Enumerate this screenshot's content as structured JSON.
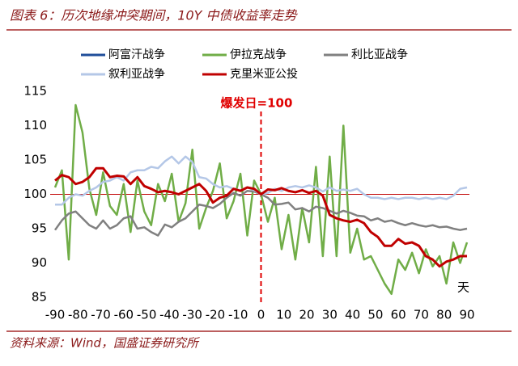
{
  "chart_data": {
    "type": "line",
    "title": "图表 6：历次地缘冲突期间，10Y 中债收益率走势",
    "source": "资料来源：Wind，国盛证券研究所",
    "annotations": [
      "爆发日=100",
      "天"
    ],
    "hline": 100,
    "vline": 0,
    "x": [
      -90,
      -87,
      -84,
      -81,
      -78,
      -75,
      -72,
      -69,
      -66,
      -63,
      -60,
      -57,
      -54,
      -51,
      -48,
      -45,
      -42,
      -39,
      -36,
      -33,
      -30,
      -27,
      -24,
      -21,
      -18,
      -15,
      -12,
      -9,
      -6,
      -3,
      0,
      3,
      6,
      9,
      12,
      15,
      18,
      21,
      24,
      27,
      30,
      33,
      36,
      39,
      42,
      45,
      48,
      51,
      54,
      57,
      60,
      63,
      66,
      69,
      72,
      75,
      78,
      81,
      84,
      87,
      90
    ],
    "xlim": [
      -90,
      90
    ],
    "xticks": [
      -90,
      -80,
      -70,
      -60,
      -50,
      -40,
      -30,
      -20,
      -10,
      0,
      10,
      20,
      30,
      40,
      50,
      60,
      70,
      80,
      90
    ],
    "ylim": [
      85,
      115
    ],
    "yticks": [
      85,
      90,
      95,
      100,
      105,
      110,
      115
    ],
    "series": [
      {
        "name": "阿富汗战争",
        "color": "#1f4e9a",
        "values": [
          null,
          null,
          null,
          null,
          null,
          null,
          null,
          null,
          null,
          null,
          null,
          null,
          null,
          null,
          null,
          null,
          null,
          null,
          null,
          null,
          null,
          null,
          null,
          null,
          null,
          null,
          null,
          null,
          null,
          null,
          null,
          null,
          null,
          null,
          null,
          null,
          null,
          null,
          null,
          null,
          null,
          null,
          null,
          null,
          null,
          null,
          null,
          null,
          null,
          null,
          null,
          null,
          null,
          null,
          null,
          null,
          null,
          null,
          null,
          null,
          null
        ]
      },
      {
        "name": "伊拉克战争",
        "color": "#70ad47",
        "values": [
          101,
          103.5,
          90.5,
          113,
          109,
          100.8,
          97,
          103.2,
          98.3,
          97,
          101.5,
          94.5,
          102,
          97.5,
          95.5,
          101.5,
          99,
          103,
          96,
          98.7,
          106.5,
          95,
          98,
          100.5,
          104.5,
          96.5,
          99,
          103,
          94,
          102,
          100,
          96,
          99.5,
          92,
          97,
          90.5,
          98,
          93,
          104,
          91,
          105.5,
          91,
          110,
          91.5,
          95,
          90.5,
          91,
          89,
          87,
          85.5,
          90.5,
          89,
          91.5,
          88.5,
          92,
          89.5,
          91,
          87,
          93,
          90,
          93
        ]
      },
      {
        "name": "利比亚战争",
        "color": "#808080",
        "values": [
          94.8,
          96.2,
          97.2,
          97.5,
          96.5,
          95.5,
          95,
          96.2,
          95,
          95.5,
          96.5,
          96.8,
          95,
          95.2,
          94.5,
          94,
          95.6,
          95.2,
          96,
          96.5,
          97.5,
          98.5,
          98.3,
          98,
          98.6,
          99.5,
          100.2,
          99.8,
          100.5,
          100.4,
          100,
          99.5,
          98.5,
          98.6,
          98.8,
          97.8,
          98,
          97.5,
          98.2,
          98,
          97.6,
          97.2,
          97.6,
          97.3,
          96.9,
          96.8,
          96.2,
          96.5,
          96,
          96.2,
          95.8,
          95.5,
          95.8,
          95.5,
          95.3,
          95.5,
          95.2,
          95.3,
          95,
          94.8,
          95
        ]
      },
      {
        "name": "叙利亚战争",
        "color": "#b4c7e7",
        "values": [
          98.5,
          98.5,
          99.5,
          100,
          99.8,
          100.5,
          101,
          101.8,
          102,
          102.5,
          102,
          103.2,
          103.5,
          103.5,
          104,
          103.8,
          104.8,
          105.5,
          104.5,
          105.5,
          104.7,
          102.5,
          102.3,
          101.5,
          101,
          101.2,
          100.8,
          100.6,
          101,
          100.6,
          100,
          100.2,
          100.8,
          100.5,
          101,
          101.2,
          101,
          101.3,
          101,
          100.4,
          101,
          100.5,
          100.7,
          100.5,
          100.8,
          100,
          99.5,
          99.5,
          99.3,
          99.5,
          99.3,
          99.5,
          99.5,
          99.3,
          99.5,
          99.3,
          99.5,
          99.3,
          99.8,
          100.8,
          101
        ]
      },
      {
        "name": "克里米亚公投",
        "color": "#c00000",
        "values": [
          102,
          102.8,
          102.5,
          101.5,
          101.8,
          102.5,
          103.8,
          103.8,
          102.5,
          102.7,
          102.6,
          101.5,
          102.5,
          101.2,
          100.8,
          100.3,
          100.5,
          100.3,
          100,
          100.5,
          101,
          101.5,
          100.5,
          98.8,
          99.5,
          99.8,
          100.8,
          100.5,
          101,
          100.8,
          100,
          100.7,
          100.6,
          100.9,
          100.5,
          100.3,
          100.6,
          100.2,
          100.5,
          99.8,
          97,
          96.5,
          96.2,
          96,
          96.3,
          95.8,
          94.5,
          93.8,
          92.5,
          92.5,
          93.5,
          92.8,
          93,
          92.5,
          91,
          90.5,
          89.5,
          90.2,
          90.5,
          91,
          91
        ]
      }
    ]
  }
}
